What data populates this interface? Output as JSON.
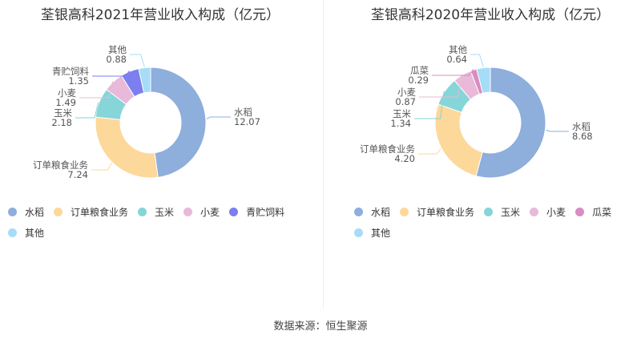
{
  "footer": "数据来源：恒生聚源",
  "colors": {
    "水稻": "#8eaedc",
    "订单粮食业务": "#fdd89b",
    "玉米": "#86d5d8",
    "小麦": "#e8b9d9",
    "青贮饲料": "#7b7ff0",
    "瓜菜": "#d98cc1",
    "其他": "#a6dcf7"
  },
  "chart_data": [
    {
      "type": "pie",
      "title": "荃银高科2021年营业收入构成（亿元）",
      "unit": "亿元",
      "categories": [
        "水稻",
        "订单粮食业务",
        "玉米",
        "小麦",
        "青贮饲料",
        "其他"
      ],
      "values": [
        12.07,
        7.24,
        2.18,
        1.49,
        1.35,
        0.88
      ],
      "value_labels": [
        "12.07",
        "7.24",
        "2.18",
        "1.49",
        "1.35",
        "0.88"
      ],
      "legend": "bottom"
    },
    {
      "type": "pie",
      "title": "荃银高科2020年营业收入构成（亿元）",
      "unit": "亿元",
      "categories": [
        "水稻",
        "订单粮食业务",
        "玉米",
        "小麦",
        "瓜菜",
        "其他"
      ],
      "values": [
        8.68,
        4.2,
        1.34,
        0.87,
        0.29,
        0.64
      ],
      "value_labels": [
        "8.68",
        "4.20",
        "1.34",
        "0.87",
        "0.29",
        "0.64"
      ],
      "legend": "bottom"
    }
  ]
}
